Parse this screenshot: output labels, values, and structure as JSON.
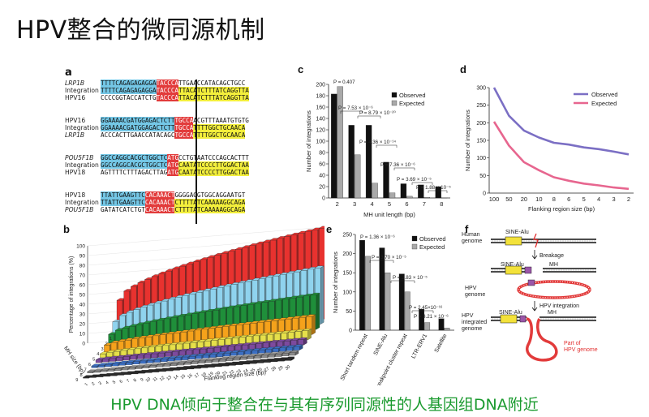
{
  "slide": {
    "title": "HPV整合的微同源机制",
    "caption": "HPV DNA倾向于整合在与其有序列同源性的人基因组DNA附近"
  },
  "panel_a": {
    "label": "a",
    "groups": [
      {
        "rows": [
          {
            "name": "LRP1B",
            "italic": true,
            "segments": [
              [
                "TTTTCAGAGAGAGGA",
                "blue"
              ],
              [
                "TACCCA",
                "red"
              ],
              [
                "TTGAACCATACAGCTGCC",
                ""
              ]
            ]
          },
          {
            "name": "Integration",
            "italic": false,
            "segments": [
              [
                "TTTTCAGAGAGAGGA",
                "blue"
              ],
              [
                "TACCCA",
                "red"
              ],
              [
                "TTACATCTTTATCAGGTTA",
                "yel"
              ]
            ]
          },
          {
            "name": "HPV16",
            "italic": false,
            "segments": [
              [
                "CCCCGGTACCATCTG",
                ""
              ],
              [
                "TACCCA",
                "red"
              ],
              [
                "TTACATCTTTATCAGGTTA",
                "yel"
              ]
            ]
          }
        ]
      },
      {
        "rows": [
          {
            "name": "HPV16",
            "italic": false,
            "segments": [
              [
                "GGAAAACGATGGAGACTCTT",
                "blue"
              ],
              [
                "TGCCA",
                "red"
              ],
              [
                "ACGTTTAAATGTGTG",
                ""
              ]
            ]
          },
          {
            "name": "Integration",
            "italic": false,
            "segments": [
              [
                "GGAAAACGATGGAGACTCTT",
                "blue"
              ],
              [
                "TGCCA",
                "red"
              ],
              [
                "TTTTGGCTGCAACA",
                "yel"
              ]
            ]
          },
          {
            "name": "LRP1B",
            "italic": true,
            "segments": [
              [
                "ACCCACTTGAACCATACAGC",
                ""
              ],
              [
                "TGCCA",
                "red"
              ],
              [
                "TTTTGGCTGCAACA",
                "yel"
              ]
            ]
          }
        ]
      },
      {
        "rows": [
          {
            "name": "POU5F1B",
            "italic": true,
            "segments": [
              [
                "GGCCAGGCACGCTGGCTC",
                "blue"
              ],
              [
                "ATG",
                "red"
              ],
              [
                "CCTGTAATCCCAGCACTTT",
                ""
              ]
            ]
          },
          {
            "name": "Integration",
            "italic": false,
            "segments": [
              [
                "GGCCAGGCACGCTGGCTC",
                "blue"
              ],
              [
                "ATG",
                "red"
              ],
              [
                "CAATATCCCCTTGGACTAA",
                "yel"
              ]
            ]
          },
          {
            "name": "HPV18",
            "italic": false,
            "segments": [
              [
                "AGTTTTCTTTAGACTTAG",
                ""
              ],
              [
                "ATG",
                "red"
              ],
              [
                "CAATATCCCCTTGGACTAA",
                "yel"
              ]
            ]
          }
        ]
      },
      {
        "rows": [
          {
            "name": "HPV18",
            "italic": false,
            "segments": [
              [
                "TTATTGAAGTTC",
                "blue"
              ],
              [
                "CACAAACT",
                "red"
              ],
              [
                "GGGGAGGTGGCAGGAATGT",
                ""
              ]
            ]
          },
          {
            "name": "Integration",
            "italic": false,
            "segments": [
              [
                "TTATTGAAGTTC",
                "blue"
              ],
              [
                "CACAAACT",
                "red"
              ],
              [
                "CTTTTATCAAAAAGGCAGA",
                "yel"
              ]
            ]
          },
          {
            "name": "POU5F1B",
            "italic": true,
            "segments": [
              [
                "GATATCATCTGT",
                ""
              ],
              [
                "CACAAACT",
                "red"
              ],
              [
                "CTTTTATCAAAAAGGCAGA",
                "yel"
              ]
            ]
          }
        ]
      }
    ]
  },
  "panel_b": {
    "label": "b",
    "ylabel": "Percentage of integrations (%)",
    "xlabel": "Flanking region size (bp)",
    "zlabel": "MH size (bp)",
    "yticks": [
      "0",
      "10",
      "20",
      "30",
      "40",
      "50",
      "60",
      "70",
      "80",
      "90",
      "100"
    ],
    "xticks": [
      "1",
      "2",
      "3",
      "4",
      "5",
      "6",
      "7",
      "8",
      "9",
      "10",
      "11",
      "12",
      "13",
      "14",
      "15",
      "16",
      "17",
      "18",
      "19",
      "20",
      "21",
      "22",
      "23",
      "24",
      "25",
      "26",
      "27",
      "28",
      "29",
      "30"
    ],
    "zticks": [
      "1",
      "2",
      "3",
      "4",
      "5",
      "6",
      "7",
      "8",
      "9"
    ],
    "colors": [
      "#e8322f",
      "#8fd3ee",
      "#1f8f3a",
      "#f5a21b",
      "#e6e04a",
      "#7d4a9e",
      "#3b6fc4",
      "#8a8a8a",
      "#2a2a2a"
    ]
  },
  "panel_f": {
    "label": "f",
    "human_genome": "Human\ngenome",
    "sine_alu": "SINE-Alu",
    "breakage": "Breakage",
    "mh": "MH",
    "hpv_genome": "HPV\ngenome",
    "hpv_integration": "HPV integration",
    "hpv_integrated_genome": "HPV\nintegrated\ngenome",
    "part_of": "Part of\nHPV genome"
  },
  "chart_data": [
    {
      "id": "c",
      "label": "c",
      "type": "bar",
      "xlabel": "MH unit length (bp)",
      "ylabel": "Number of integrations",
      "ylim": [
        0,
        200
      ],
      "yticks": [
        0,
        20,
        40,
        60,
        80,
        100,
        120,
        140,
        160,
        180,
        200
      ],
      "categories": [
        "2",
        "3",
        "4",
        "5",
        "6",
        "7",
        "8"
      ],
      "series": [
        {
          "name": "Observed",
          "color": "#111111",
          "values": [
            183,
            128,
            128,
            63,
            25,
            23,
            20
          ]
        },
        {
          "name": "Expected",
          "color": "#a9a9a9",
          "values": [
            196,
            76,
            26,
            9,
            3,
            1,
            0.5
          ]
        }
      ],
      "legend": "top-right",
      "annotations": [
        "P = 0.407",
        "P = 7.53 × 10⁻⁶",
        "P = 8.79 × 10⁻²⁰",
        "P = 4.36 × 10⁻¹⁴",
        "P = 7.36 × 10⁻⁶",
        "P = 3.69 × 10⁻⁵",
        "P = 1.88 × 10⁻⁵"
      ]
    },
    {
      "id": "d",
      "label": "d",
      "type": "line",
      "xlabel": "Flanking region size (bp)",
      "ylabel": "Number of integrations",
      "ylim": [
        0,
        300
      ],
      "yticks": [
        0,
        50,
        100,
        150,
        200,
        250,
        300
      ],
      "x": [
        "100",
        "50",
        "20",
        "10",
        "8",
        "6",
        "5",
        "4",
        "3",
        "2"
      ],
      "series": [
        {
          "name": "Observed",
          "color": "#7b6fc4",
          "values": [
            300,
            220,
            178,
            158,
            143,
            138,
            130,
            125,
            118,
            110
          ]
        },
        {
          "name": "Expected",
          "color": "#e7668f",
          "values": [
            203,
            135,
            88,
            65,
            45,
            35,
            27,
            22,
            16,
            12
          ]
        }
      ],
      "legend": "top-right"
    },
    {
      "id": "e",
      "label": "e",
      "type": "bar",
      "ylabel": "Number of integrations",
      "ylim": [
        0,
        250
      ],
      "yticks": [
        0,
        50,
        100,
        150,
        200,
        250
      ],
      "categories": [
        "Short tandem repeat",
        "SINE-Alu",
        "Fragile X breakpoint cluster repeat",
        "LTR-ERV1",
        "Satellite"
      ],
      "series": [
        {
          "name": "Observed",
          "color": "#111111",
          "values": [
            235,
            215,
            147,
            55,
            30
          ]
        },
        {
          "name": "Expected",
          "color": "#a9a9a9",
          "values": [
            193,
            150,
            100,
            20,
            6
          ]
        }
      ],
      "legend": "top-right",
      "annotations": [
        "P = 1.36 × 10⁻⁶",
        "P = 3.70 × 10⁻⁵",
        "P = 2.83 × 10⁻⁵",
        "P = 2.45×10⁻¹⁶",
        "P = 3.21 × 10⁻⁶"
      ]
    }
  ]
}
